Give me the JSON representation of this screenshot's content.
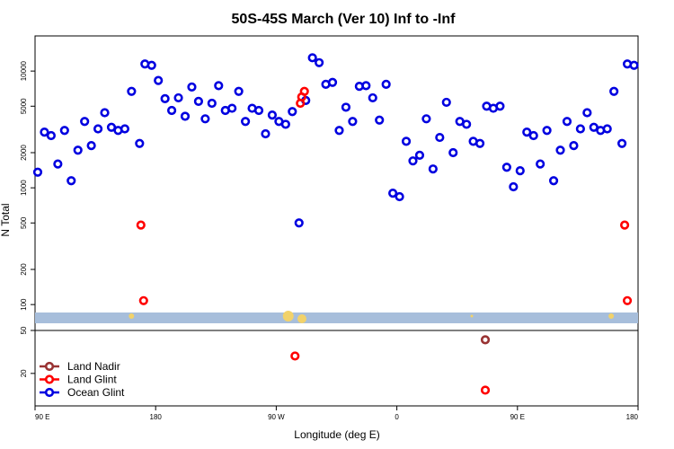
{
  "chart_data": {
    "type": "scatter",
    "title": "50S-45S March (Ver 10)   Inf to -Inf",
    "xlabel": "Longitude (deg E)",
    "ylabel": "N Total",
    "x_ticks": [
      {
        "value": 90,
        "label": "90 E"
      },
      {
        "value": 180,
        "label": "180"
      },
      {
        "value": 270,
        "label": "90 W"
      },
      {
        "value": 360,
        "label": "0"
      },
      {
        "value": 450,
        "label": "90 E"
      },
      {
        "value": 540,
        "label": "180"
      }
    ],
    "xlim": [
      90,
      540
    ],
    "main_panel": {
      "yscale": "log",
      "ylim": [
        60,
        20000
      ],
      "y_ticks": [
        {
          "value": 100,
          "label": "100"
        },
        {
          "value": 200,
          "label": "200"
        },
        {
          "value": 500,
          "label": "500"
        },
        {
          "value": 1000,
          "label": "1000"
        },
        {
          "value": 2000,
          "label": "2000"
        },
        {
          "value": 5000,
          "label": "5000"
        },
        {
          "value": 10000,
          "label": "10000"
        }
      ],
      "band_color": "#a7bedb",
      "band_marker_color": "#f2d26a",
      "series": [
        {
          "name": "Ocean Glint",
          "color": "#0000e0",
          "points": [
            [
              92,
              1360
            ],
            [
              97,
              3000
            ],
            [
              102,
              2800
            ],
            [
              107,
              1600
            ],
            [
              112,
              3100
            ],
            [
              117,
              1150
            ],
            [
              122,
              2100
            ],
            [
              127,
              3700
            ],
            [
              132,
              2300
            ],
            [
              137,
              3200
            ],
            [
              142,
              4400
            ],
            [
              147,
              3300
            ],
            [
              152,
              3100
            ],
            [
              157,
              3200
            ],
            [
              162,
              6700
            ],
            [
              168,
              2400
            ],
            [
              172,
              11500
            ],
            [
              177,
              11200
            ],
            [
              182,
              8300
            ],
            [
              187,
              5800
            ],
            [
              192,
              4600
            ],
            [
              197,
              5900
            ],
            [
              202,
              4100
            ],
            [
              207,
              7300
            ],
            [
              212,
              5500
            ],
            [
              217,
              3900
            ],
            [
              222,
              5300
            ],
            [
              227,
              7500
            ],
            [
              232,
              4600
            ],
            [
              237,
              4800
            ],
            [
              242,
              6700
            ],
            [
              247,
              3700
            ],
            [
              252,
              4800
            ],
            [
              257,
              4600
            ],
            [
              262,
              2900
            ],
            [
              267,
              4200
            ],
            [
              272,
              3700
            ],
            [
              277,
              3500
            ],
            [
              282,
              4500
            ],
            [
              287,
              500
            ],
            [
              292,
              5600
            ],
            [
              297,
              13000
            ],
            [
              302,
              11800
            ],
            [
              307,
              7700
            ],
            [
              312,
              8000
            ],
            [
              317,
              3100
            ],
            [
              322,
              4900
            ],
            [
              327,
              3700
            ],
            [
              332,
              7400
            ],
            [
              337,
              7500
            ],
            [
              342,
              5900
            ],
            [
              347,
              3800
            ],
            [
              352,
              7700
            ],
            [
              357,
              900
            ],
            [
              362,
              840
            ],
            [
              367,
              2500
            ],
            [
              372,
              1700
            ],
            [
              377,
              1900
            ],
            [
              382,
              3900
            ],
            [
              387,
              1450
            ],
            [
              392,
              2700
            ],
            [
              397,
              5400
            ],
            [
              402,
              2000
            ],
            [
              407,
              3700
            ],
            [
              412,
              3500
            ],
            [
              417,
              2500
            ],
            [
              422,
              2400
            ],
            [
              427,
              5000
            ],
            [
              432,
              4800
            ],
            [
              437,
              5000
            ],
            [
              442,
              1500
            ],
            [
              447,
              1020
            ],
            [
              452,
              1400
            ],
            [
              457,
              3000
            ],
            [
              462,
              2800
            ],
            [
              467,
              1600
            ],
            [
              472,
              3100
            ],
            [
              477,
              1150
            ],
            [
              482,
              2100
            ],
            [
              487,
              3700
            ],
            [
              492,
              2300
            ],
            [
              497,
              3200
            ],
            [
              502,
              4400
            ],
            [
              507,
              3300
            ],
            [
              512,
              3100
            ],
            [
              517,
              3200
            ],
            [
              522,
              6700
            ],
            [
              528,
              2400
            ],
            [
              532,
              11500
            ],
            [
              537,
              11200
            ]
          ]
        },
        {
          "name": "Land Glint",
          "color": "#ff0000",
          "points": [
            [
              169,
              480
            ],
            [
              171,
              108
            ],
            [
              288,
              5300
            ],
            [
              289,
              6000
            ],
            [
              291,
              6700
            ],
            [
              530,
              480
            ],
            [
              532,
              108
            ]
          ]
        }
      ]
    },
    "sub_panel": {
      "yscale": "log",
      "ylim": [
        10,
        50
      ],
      "y_ticks": [
        {
          "value": 20,
          "label": "20"
        },
        {
          "value": 50,
          "label": "50"
        }
      ],
      "series": [
        {
          "name": "Land Nadir",
          "color": "#993333",
          "points": [
            [
              426,
              41
            ]
          ]
        },
        {
          "name": "Land Glint",
          "color": "#ff0000",
          "points": [
            [
              284,
              29
            ],
            [
              426,
              14
            ]
          ]
        }
      ]
    },
    "legend": {
      "placement": "bottom-left",
      "entries": [
        {
          "label": "Land Nadir",
          "color": "#993333"
        },
        {
          "label": "Land Glint",
          "color": "#ff0000"
        },
        {
          "label": "Ocean Glint",
          "color": "#0000e0"
        }
      ]
    }
  }
}
